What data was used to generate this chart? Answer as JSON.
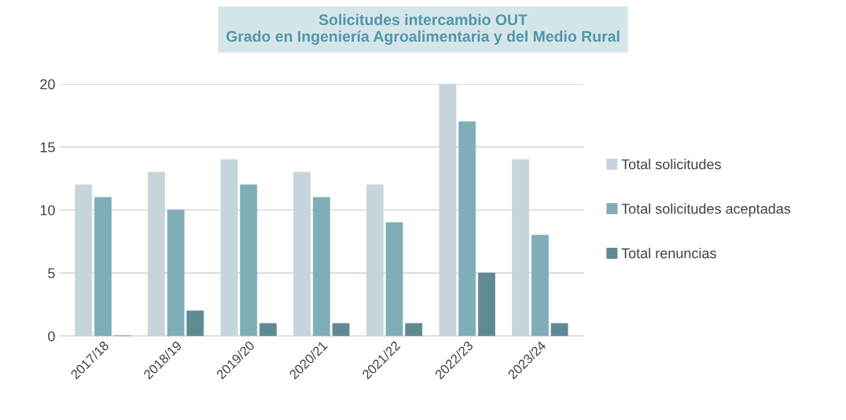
{
  "chart_data": {
    "type": "bar",
    "title": "Solicitudes intercambio OUT\nGrado en Ingeniería Agroalimentaria y del Medio Rural",
    "categories": [
      "2017/18",
      "2018/19",
      "2019/20",
      "2020/21",
      "2021/22",
      "2022/23",
      "2023/24"
    ],
    "series": [
      {
        "name": "Total solicitudes",
        "color": "#c5d5db",
        "values": [
          12,
          13,
          14,
          13,
          12,
          20,
          14
        ]
      },
      {
        "name": "Total solicitudes aceptadas",
        "color": "#7fadb8",
        "values": [
          11,
          10,
          12,
          11,
          9,
          17,
          8
        ]
      },
      {
        "name": "Total renuncias",
        "color": "#5f8a94",
        "values": [
          0,
          2,
          1,
          1,
          1,
          5,
          1
        ]
      }
    ],
    "ylim": [
      0,
      20
    ],
    "yticks": [
      0,
      5,
      10,
      15,
      20
    ],
    "grid": "y",
    "legend": "right"
  }
}
